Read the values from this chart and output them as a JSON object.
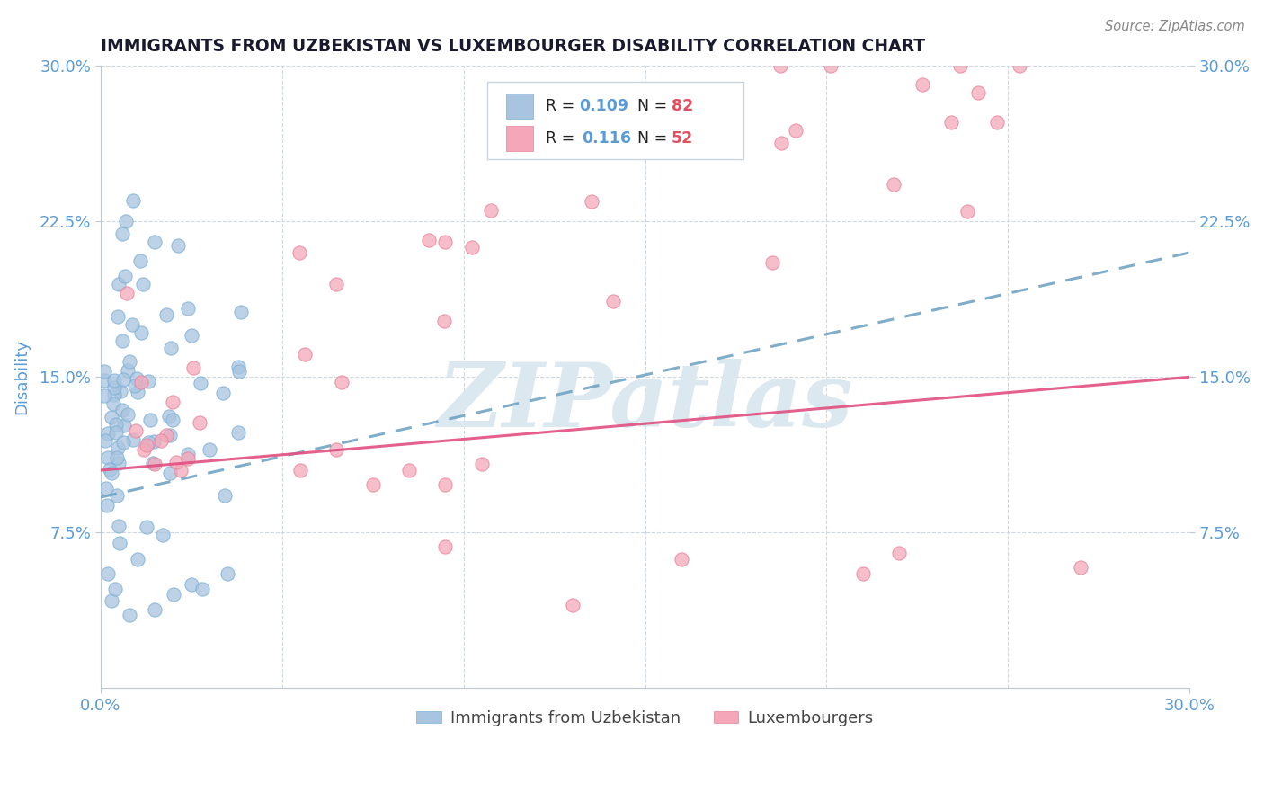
{
  "title": "IMMIGRANTS FROM UZBEKISTAN VS LUXEMBOURGER DISABILITY CORRELATION CHART",
  "source": "Source: ZipAtlas.com",
  "ylabel": "Disability",
  "xlim": [
    0.0,
    0.3
  ],
  "ylim": [
    0.0,
    0.3
  ],
  "legend1_label": "Immigrants from Uzbekistan",
  "legend2_label": "Luxembourgers",
  "r1": "0.109",
  "n1": "82",
  "r2": "0.116",
  "n2": "52",
  "color1": "#a8c4e0",
  "color2": "#f4a7b9",
  "color1_edge": "#7aafd4",
  "color2_edge": "#e8829a",
  "trendline1_color": "#6a9fc0",
  "trendline2_color": "#e05080",
  "watermark": "ZIPatlas",
  "watermark_color": "#dce8f0",
  "background_color": "#ffffff",
  "grid_color": "#d0d8e0",
  "title_color": "#1a1a2e",
  "tick_label_color": "#5b9bd5",
  "legend_text_color": "#222222",
  "legend_r_color": "#5b9bd5",
  "legend_n_color": "#e05060"
}
